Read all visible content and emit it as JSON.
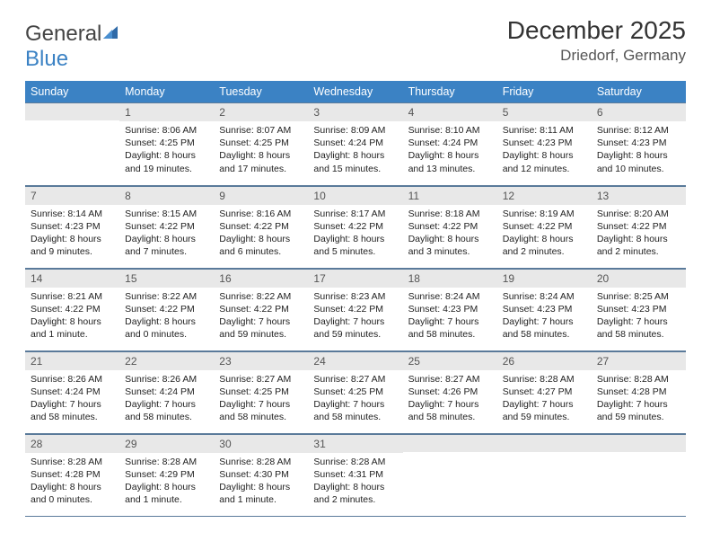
{
  "brand": {
    "name_part1": "General",
    "name_part2": "Blue"
  },
  "title": "December 2025",
  "location": "Driedorf, Germany",
  "colors": {
    "header_bg": "#3b82c4",
    "header_fg": "#ffffff",
    "daynum_bg": "#e8e8e8",
    "rule": "#5a7a9a",
    "text": "#222222"
  },
  "weekdays": [
    "Sunday",
    "Monday",
    "Tuesday",
    "Wednesday",
    "Thursday",
    "Friday",
    "Saturday"
  ],
  "weeks": [
    [
      {
        "n": "",
        "sunrise": "",
        "sunset": "",
        "daylight": ""
      },
      {
        "n": "1",
        "sunrise": "Sunrise: 8:06 AM",
        "sunset": "Sunset: 4:25 PM",
        "daylight": "Daylight: 8 hours and 19 minutes."
      },
      {
        "n": "2",
        "sunrise": "Sunrise: 8:07 AM",
        "sunset": "Sunset: 4:25 PM",
        "daylight": "Daylight: 8 hours and 17 minutes."
      },
      {
        "n": "3",
        "sunrise": "Sunrise: 8:09 AM",
        "sunset": "Sunset: 4:24 PM",
        "daylight": "Daylight: 8 hours and 15 minutes."
      },
      {
        "n": "4",
        "sunrise": "Sunrise: 8:10 AM",
        "sunset": "Sunset: 4:24 PM",
        "daylight": "Daylight: 8 hours and 13 minutes."
      },
      {
        "n": "5",
        "sunrise": "Sunrise: 8:11 AM",
        "sunset": "Sunset: 4:23 PM",
        "daylight": "Daylight: 8 hours and 12 minutes."
      },
      {
        "n": "6",
        "sunrise": "Sunrise: 8:12 AM",
        "sunset": "Sunset: 4:23 PM",
        "daylight": "Daylight: 8 hours and 10 minutes."
      }
    ],
    [
      {
        "n": "7",
        "sunrise": "Sunrise: 8:14 AM",
        "sunset": "Sunset: 4:23 PM",
        "daylight": "Daylight: 8 hours and 9 minutes."
      },
      {
        "n": "8",
        "sunrise": "Sunrise: 8:15 AM",
        "sunset": "Sunset: 4:22 PM",
        "daylight": "Daylight: 8 hours and 7 minutes."
      },
      {
        "n": "9",
        "sunrise": "Sunrise: 8:16 AM",
        "sunset": "Sunset: 4:22 PM",
        "daylight": "Daylight: 8 hours and 6 minutes."
      },
      {
        "n": "10",
        "sunrise": "Sunrise: 8:17 AM",
        "sunset": "Sunset: 4:22 PM",
        "daylight": "Daylight: 8 hours and 5 minutes."
      },
      {
        "n": "11",
        "sunrise": "Sunrise: 8:18 AM",
        "sunset": "Sunset: 4:22 PM",
        "daylight": "Daylight: 8 hours and 3 minutes."
      },
      {
        "n": "12",
        "sunrise": "Sunrise: 8:19 AM",
        "sunset": "Sunset: 4:22 PM",
        "daylight": "Daylight: 8 hours and 2 minutes."
      },
      {
        "n": "13",
        "sunrise": "Sunrise: 8:20 AM",
        "sunset": "Sunset: 4:22 PM",
        "daylight": "Daylight: 8 hours and 2 minutes."
      }
    ],
    [
      {
        "n": "14",
        "sunrise": "Sunrise: 8:21 AM",
        "sunset": "Sunset: 4:22 PM",
        "daylight": "Daylight: 8 hours and 1 minute."
      },
      {
        "n": "15",
        "sunrise": "Sunrise: 8:22 AM",
        "sunset": "Sunset: 4:22 PM",
        "daylight": "Daylight: 8 hours and 0 minutes."
      },
      {
        "n": "16",
        "sunrise": "Sunrise: 8:22 AM",
        "sunset": "Sunset: 4:22 PM",
        "daylight": "Daylight: 7 hours and 59 minutes."
      },
      {
        "n": "17",
        "sunrise": "Sunrise: 8:23 AM",
        "sunset": "Sunset: 4:22 PM",
        "daylight": "Daylight: 7 hours and 59 minutes."
      },
      {
        "n": "18",
        "sunrise": "Sunrise: 8:24 AM",
        "sunset": "Sunset: 4:23 PM",
        "daylight": "Daylight: 7 hours and 58 minutes."
      },
      {
        "n": "19",
        "sunrise": "Sunrise: 8:24 AM",
        "sunset": "Sunset: 4:23 PM",
        "daylight": "Daylight: 7 hours and 58 minutes."
      },
      {
        "n": "20",
        "sunrise": "Sunrise: 8:25 AM",
        "sunset": "Sunset: 4:23 PM",
        "daylight": "Daylight: 7 hours and 58 minutes."
      }
    ],
    [
      {
        "n": "21",
        "sunrise": "Sunrise: 8:26 AM",
        "sunset": "Sunset: 4:24 PM",
        "daylight": "Daylight: 7 hours and 58 minutes."
      },
      {
        "n": "22",
        "sunrise": "Sunrise: 8:26 AM",
        "sunset": "Sunset: 4:24 PM",
        "daylight": "Daylight: 7 hours and 58 minutes."
      },
      {
        "n": "23",
        "sunrise": "Sunrise: 8:27 AM",
        "sunset": "Sunset: 4:25 PM",
        "daylight": "Daylight: 7 hours and 58 minutes."
      },
      {
        "n": "24",
        "sunrise": "Sunrise: 8:27 AM",
        "sunset": "Sunset: 4:25 PM",
        "daylight": "Daylight: 7 hours and 58 minutes."
      },
      {
        "n": "25",
        "sunrise": "Sunrise: 8:27 AM",
        "sunset": "Sunset: 4:26 PM",
        "daylight": "Daylight: 7 hours and 58 minutes."
      },
      {
        "n": "26",
        "sunrise": "Sunrise: 8:28 AM",
        "sunset": "Sunset: 4:27 PM",
        "daylight": "Daylight: 7 hours and 59 minutes."
      },
      {
        "n": "27",
        "sunrise": "Sunrise: 8:28 AM",
        "sunset": "Sunset: 4:28 PM",
        "daylight": "Daylight: 7 hours and 59 minutes."
      }
    ],
    [
      {
        "n": "28",
        "sunrise": "Sunrise: 8:28 AM",
        "sunset": "Sunset: 4:28 PM",
        "daylight": "Daylight: 8 hours and 0 minutes."
      },
      {
        "n": "29",
        "sunrise": "Sunrise: 8:28 AM",
        "sunset": "Sunset: 4:29 PM",
        "daylight": "Daylight: 8 hours and 1 minute."
      },
      {
        "n": "30",
        "sunrise": "Sunrise: 8:28 AM",
        "sunset": "Sunset: 4:30 PM",
        "daylight": "Daylight: 8 hours and 1 minute."
      },
      {
        "n": "31",
        "sunrise": "Sunrise: 8:28 AM",
        "sunset": "Sunset: 4:31 PM",
        "daylight": "Daylight: 8 hours and 2 minutes."
      },
      {
        "n": "",
        "sunrise": "",
        "sunset": "",
        "daylight": ""
      },
      {
        "n": "",
        "sunrise": "",
        "sunset": "",
        "daylight": ""
      },
      {
        "n": "",
        "sunrise": "",
        "sunset": "",
        "daylight": ""
      }
    ]
  ]
}
